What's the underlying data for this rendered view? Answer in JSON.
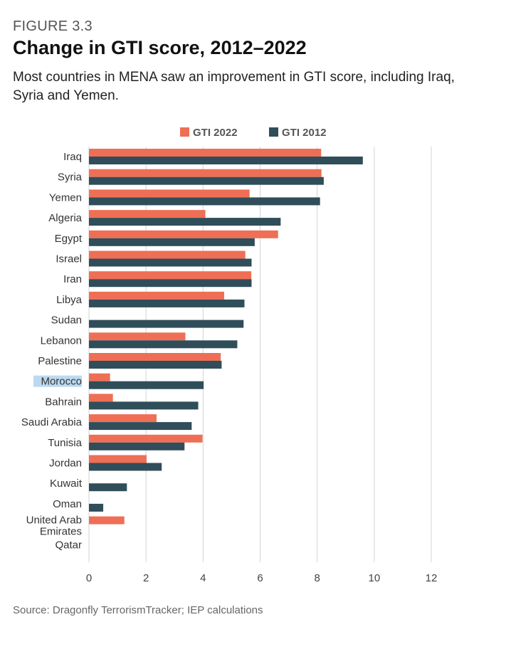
{
  "figure": {
    "label": "FIGURE 3.3",
    "title": "Change in GTI score, 2012–2022",
    "subtitle": "Most countries in MENA saw an improvement in GTI score, including Iraq, Syria and Yemen.",
    "source": "Source: Dragonfly TerrorismTracker; IEP calculations"
  },
  "colors": {
    "gti2022": "#ee6f55",
    "gti2012": "#304d5a",
    "grid": "#d3d3d3",
    "highlight": "#bcd9f0"
  },
  "chart_data": {
    "type": "bar",
    "orientation": "horizontal",
    "title": "",
    "xlabel": "",
    "ylabel": "",
    "xlim": [
      0,
      12
    ],
    "xticks": [
      0,
      2,
      4,
      6,
      8,
      10,
      12
    ],
    "grid": true,
    "legend_position": "top",
    "highlighted_category": "Morocco",
    "categories": [
      "Iraq",
      "Syria",
      "Yemen",
      "Algeria",
      "Egypt",
      "Israel",
      "Iran",
      "Libya",
      "Sudan",
      "Lebanon",
      "Palestine",
      "Morocco",
      "Bahrain",
      "Saudi Arabia",
      "Tunisia",
      "Jordan",
      "Kuwait",
      "Oman",
      "United Arab Emirates",
      "Qatar"
    ],
    "series": [
      {
        "name": "GTI 2022",
        "color": "#ee6f55",
        "values": [
          8.14,
          8.15,
          5.63,
          4.08,
          6.63,
          5.48,
          5.69,
          4.74,
          0,
          3.38,
          4.62,
          0.74,
          0.84,
          2.37,
          3.98,
          2.02,
          0,
          0,
          1.24,
          0
        ]
      },
      {
        "name": "GTI 2012",
        "color": "#304d5a",
        "values": [
          9.6,
          8.23,
          8.1,
          6.72,
          5.81,
          5.7,
          5.7,
          5.45,
          5.42,
          5.2,
          4.65,
          4.02,
          3.83,
          3.6,
          3.35,
          2.55,
          1.33,
          0.5,
          0,
          0
        ]
      }
    ]
  }
}
